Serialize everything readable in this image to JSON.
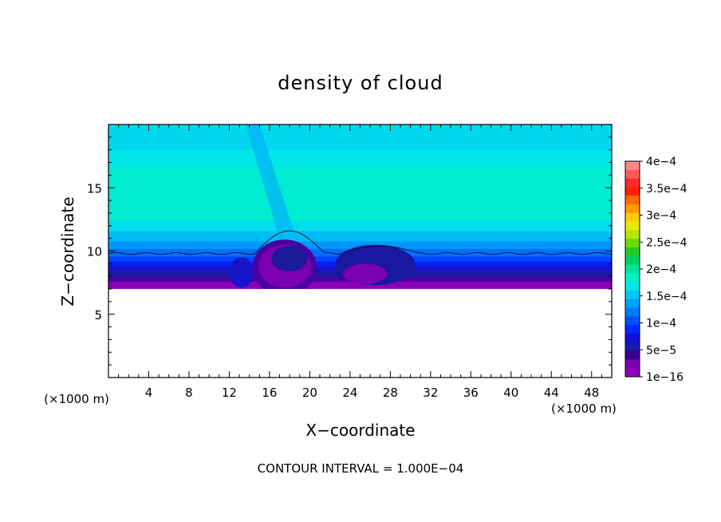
{
  "chart_data": {
    "type": "heatmap",
    "title": "density of cloud",
    "xlabel": "X−coordinate",
    "ylabel": "Z−coordinate",
    "x_unit_label": "(×1000 m)",
    "footer": "CONTOUR INTERVAL = 1.000E−04",
    "xlim": [
      0,
      50
    ],
    "ylim": [
      0,
      20
    ],
    "x_ticks": [
      4,
      8,
      12,
      16,
      20,
      24,
      28,
      32,
      36,
      40,
      44,
      48
    ],
    "y_ticks": [
      5,
      10,
      15
    ],
    "colorbar": {
      "labels": [
        "4e−4",
        "3.5e−4",
        "3e−4",
        "2.5e−4",
        "2e−4",
        "1.5e−4",
        "1e−4",
        "5e−5",
        "1e−16"
      ],
      "colors": [
        "#ff8a8a",
        "#ff5a5a",
        "#ff2a2a",
        "#ff2200",
        "#ff6a00",
        "#ff9a00",
        "#ffcc00",
        "#eaea00",
        "#b4e600",
        "#6cdc00",
        "#22cc22",
        "#00d060",
        "#00e49a",
        "#00f0c8",
        "#00e8e8",
        "#00c8f0",
        "#00a0ff",
        "#0078ff",
        "#0050ff",
        "#0028ff",
        "#1010d8",
        "#1a1aa8",
        "#3a0090",
        "#7800b0",
        "#9000c0"
      ]
    },
    "contour_line_z": 9.8,
    "layers": [
      {
        "z_from": 7.0,
        "z_to": 7.6,
        "color": "#8c00b8"
      },
      {
        "z_from": 7.6,
        "z_to": 8.0,
        "color": "#4a00a0"
      },
      {
        "z_from": 8.0,
        "z_to": 8.4,
        "color": "#1818a0"
      },
      {
        "z_from": 8.4,
        "z_to": 8.8,
        "color": "#1414c8"
      },
      {
        "z_from": 8.8,
        "z_to": 9.2,
        "color": "#0a1ef0"
      },
      {
        "z_from": 9.2,
        "z_to": 9.6,
        "color": "#0046ff"
      },
      {
        "z_from": 9.6,
        "z_to": 10.2,
        "color": "#0070ff"
      },
      {
        "z_from": 10.2,
        "z_to": 10.8,
        "color": "#0098ff"
      },
      {
        "z_from": 10.8,
        "z_to": 11.6,
        "color": "#00bcf4"
      },
      {
        "z_from": 11.6,
        "z_to": 12.4,
        "color": "#00dcec"
      },
      {
        "z_from": 12.4,
        "z_to": 16.6,
        "color": "#00ecd2"
      },
      {
        "z_from": 16.6,
        "z_to": 18.0,
        "color": "#00e6e6"
      },
      {
        "z_from": 18.0,
        "z_to": 20.0,
        "color": "#00d8f0"
      }
    ],
    "cells": [
      {
        "x": 17.5,
        "z": 8.7,
        "rx": 3.2,
        "rz": 2.2,
        "color": "#4a00a0"
      },
      {
        "x": 17.5,
        "z": 8.8,
        "rx": 2.6,
        "rz": 1.7,
        "color": "#7a00b0"
      },
      {
        "x": 18.0,
        "z": 9.4,
        "rx": 1.8,
        "rz": 1.0,
        "color": "#1a1a9a"
      },
      {
        "x": 26.5,
        "z": 8.9,
        "rx": 4.0,
        "rz": 1.6,
        "color": "#1818a0"
      },
      {
        "x": 25.5,
        "z": 8.2,
        "rx": 2.2,
        "rz": 0.8,
        "color": "#7a00b0"
      },
      {
        "x": 13.2,
        "z": 8.3,
        "rx": 1.2,
        "rz": 1.2,
        "color": "#1414c8"
      }
    ]
  }
}
